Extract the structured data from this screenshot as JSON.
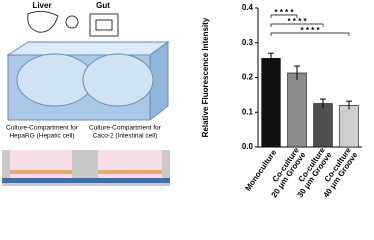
{
  "diagram": {
    "organs": [
      "Liver",
      "Gut"
    ],
    "compartments": [
      [
        "Culture-Compartment for",
        "HepaRG (Hepatic cell)"
      ],
      [
        "Culture-Compartment for",
        "Caco-2 (Intestinal cell)"
      ]
    ]
  },
  "chart_data": {
    "type": "bar",
    "y_label": "Relative Fluorescence Intensity",
    "categories": [
      [
        "Monoculture"
      ],
      [
        "Co-culture",
        "20 μm Groove"
      ],
      [
        "Co-culture",
        "30 μm Groove"
      ],
      [
        "Co-culture",
        "40 μm Groove"
      ]
    ],
    "values": [
      0.255,
      0.213,
      0.125,
      0.12
    ],
    "errors": [
      0.015,
      0.02,
      0.013,
      0.012
    ],
    "colors": [
      "#111111",
      "#8a8a8a",
      "#4f4f4f",
      "#cfcfcf"
    ],
    "ylim": [
      0,
      0.4
    ],
    "yticks": [
      {
        "value": 0,
        "label": "0.0"
      },
      0.1,
      0.2,
      0.3,
      0.4
    ],
    "significance": [
      "* * * *",
      "* * * *",
      "* * * *"
    ]
  }
}
